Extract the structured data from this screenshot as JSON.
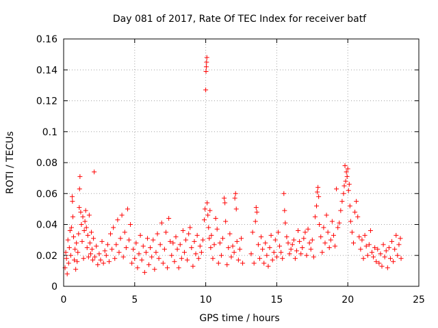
{
  "chart_data": {
    "type": "scatter",
    "title": "Day 081 of 2017, Rate Of TEC Index for receiver batf",
    "xlabel": "GPS time / hours",
    "ylabel": "ROTI / TECUs",
    "xlim": [
      0,
      25
    ],
    "ylim": [
      0,
      0.16
    ],
    "xticks": [
      0,
      5,
      10,
      15,
      20,
      25
    ],
    "xtick_labels": [
      "0",
      "5",
      "10",
      "15",
      "20",
      "25"
    ],
    "yticks": [
      0,
      0.02,
      0.04,
      0.06,
      0.08,
      0.1,
      0.12,
      0.14,
      0.16
    ],
    "ytick_labels": [
      "0",
      "0.02",
      "0.04",
      "0.06",
      "0.08",
      "0.1",
      "0.12",
      "0.14",
      "0.16"
    ],
    "grid": true,
    "marker": "+",
    "color": "#ff0000",
    "series": [
      {
        "name": "ROTI",
        "points": [
          [
            0.1,
            0.012
          ],
          [
            0.15,
            0.022
          ],
          [
            0.2,
            0.018
          ],
          [
            0.25,
            0.008
          ],
          [
            0.3,
            0.03
          ],
          [
            0.35,
            0.015
          ],
          [
            0.4,
            0.025
          ],
          [
            0.45,
            0.036
          ],
          [
            0.5,
            0.02
          ],
          [
            0.55,
            0.038
          ],
          [
            0.6,
            0.058
          ],
          [
            0.62,
            0.055
          ],
          [
            0.65,
            0.045
          ],
          [
            0.7,
            0.032
          ],
          [
            0.75,
            0.017
          ],
          [
            0.8,
            0.024
          ],
          [
            0.85,
            0.011
          ],
          [
            0.9,
            0.028
          ],
          [
            0.95,
            0.016
          ],
          [
            1.0,
            0.022
          ],
          [
            1.05,
            0.034
          ],
          [
            1.1,
            0.051
          ],
          [
            1.12,
            0.063
          ],
          [
            1.15,
            0.071
          ],
          [
            1.2,
            0.048
          ],
          [
            1.25,
            0.04
          ],
          [
            1.3,
            0.029
          ],
          [
            1.35,
            0.045
          ],
          [
            1.4,
            0.018
          ],
          [
            1.45,
            0.036
          ],
          [
            1.5,
            0.042
          ],
          [
            1.55,
            0.049
          ],
          [
            1.6,
            0.038
          ],
          [
            1.65,
            0.025
          ],
          [
            1.7,
            0.033
          ],
          [
            1.75,
            0.019
          ],
          [
            1.8,
            0.046
          ],
          [
            1.85,
            0.028
          ],
          [
            1.9,
            0.021
          ],
          [
            1.95,
            0.035
          ],
          [
            2.0,
            0.024
          ],
          [
            2.05,
            0.017
          ],
          [
            2.1,
            0.031
          ],
          [
            2.15,
            0.074
          ],
          [
            2.2,
            0.019
          ],
          [
            2.3,
            0.026
          ],
          [
            2.4,
            0.014
          ],
          [
            2.5,
            0.021
          ],
          [
            2.6,
            0.017
          ],
          [
            2.7,
            0.029
          ],
          [
            2.8,
            0.015
          ],
          [
            2.9,
            0.023
          ],
          [
            3.0,
            0.02
          ],
          [
            3.1,
            0.027
          ],
          [
            3.2,
            0.016
          ],
          [
            3.3,
            0.034
          ],
          [
            3.4,
            0.024
          ],
          [
            3.5,
            0.038
          ],
          [
            3.6,
            0.018
          ],
          [
            3.7,
            0.027
          ],
          [
            3.8,
            0.043
          ],
          [
            3.9,
            0.022
          ],
          [
            4.0,
            0.031
          ],
          [
            4.1,
            0.046
          ],
          [
            4.2,
            0.019
          ],
          [
            4.3,
            0.035
          ],
          [
            4.4,
            0.025
          ],
          [
            4.5,
            0.05
          ],
          [
            4.6,
            0.03
          ],
          [
            4.7,
            0.04
          ],
          [
            4.8,
            0.015
          ],
          [
            4.9,
            0.024
          ],
          [
            5.0,
            0.018
          ],
          [
            5.1,
            0.028
          ],
          [
            5.2,
            0.012
          ],
          [
            5.3,
            0.021
          ],
          [
            5.4,
            0.033
          ],
          [
            5.5,
            0.017
          ],
          [
            5.6,
            0.026
          ],
          [
            5.7,
            0.009
          ],
          [
            5.8,
            0.022
          ],
          [
            5.9,
            0.031
          ],
          [
            6.0,
            0.014
          ],
          [
            6.1,
            0.025
          ],
          [
            6.2,
            0.019
          ],
          [
            6.3,
            0.03
          ],
          [
            6.4,
            0.011
          ],
          [
            6.5,
            0.022
          ],
          [
            6.6,
            0.034
          ],
          [
            6.7,
            0.018
          ],
          [
            6.8,
            0.027
          ],
          [
            6.9,
            0.041
          ],
          [
            7.0,
            0.015
          ],
          [
            7.1,
            0.024
          ],
          [
            7.2,
            0.035
          ],
          [
            7.3,
            0.012
          ],
          [
            7.4,
            0.044
          ],
          [
            7.5,
            0.029
          ],
          [
            7.6,
            0.02
          ],
          [
            7.7,
            0.028
          ],
          [
            7.8,
            0.016
          ],
          [
            7.9,
            0.032
          ],
          [
            8.0,
            0.024
          ],
          [
            8.1,
            0.012
          ],
          [
            8.2,
            0.027
          ],
          [
            8.3,
            0.018
          ],
          [
            8.4,
            0.036
          ],
          [
            8.5,
            0.022
          ],
          [
            8.6,
            0.03
          ],
          [
            8.7,
            0.017
          ],
          [
            8.8,
            0.034
          ],
          [
            8.9,
            0.038
          ],
          [
            9.0,
            0.025
          ],
          [
            9.1,
            0.013
          ],
          [
            9.2,
            0.029
          ],
          [
            9.3,
            0.021
          ],
          [
            9.4,
            0.033
          ],
          [
            9.5,
            0.018
          ],
          [
            9.6,
            0.026
          ],
          [
            9.7,
            0.022
          ],
          [
            9.8,
            0.03
          ],
          [
            9.9,
            0.043
          ],
          [
            9.95,
            0.05
          ],
          [
            10.0,
            0.127
          ],
          [
            10.02,
            0.139
          ],
          [
            10.04,
            0.142
          ],
          [
            10.06,
            0.145
          ],
          [
            10.08,
            0.148
          ],
          [
            10.1,
            0.054
          ],
          [
            10.15,
            0.046
          ],
          [
            10.2,
            0.038
          ],
          [
            10.25,
            0.031
          ],
          [
            10.3,
            0.049
          ],
          [
            10.35,
            0.025
          ],
          [
            10.4,
            0.033
          ],
          [
            10.5,
            0.018
          ],
          [
            10.6,
            0.027
          ],
          [
            10.7,
            0.044
          ],
          [
            10.8,
            0.037
          ],
          [
            10.9,
            0.015
          ],
          [
            11.0,
            0.028
          ],
          [
            11.1,
            0.02
          ],
          [
            11.2,
            0.031
          ],
          [
            11.3,
            0.057
          ],
          [
            11.35,
            0.054
          ],
          [
            11.4,
            0.042
          ],
          [
            11.5,
            0.014
          ],
          [
            11.6,
            0.025
          ],
          [
            11.7,
            0.034
          ],
          [
            11.8,
            0.019
          ],
          [
            11.9,
            0.026
          ],
          [
            12.0,
            0.022
          ],
          [
            12.05,
            0.057
          ],
          [
            12.1,
            0.06
          ],
          [
            12.15,
            0.05
          ],
          [
            12.2,
            0.029
          ],
          [
            12.3,
            0.017
          ],
          [
            12.4,
            0.024
          ],
          [
            12.5,
            0.031
          ],
          [
            12.6,
            0.015
          ],
          [
            13.2,
            0.021
          ],
          [
            13.3,
            0.035
          ],
          [
            13.4,
            0.015
          ],
          [
            13.5,
            0.042
          ],
          [
            13.55,
            0.051
          ],
          [
            13.6,
            0.048
          ],
          [
            13.7,
            0.027
          ],
          [
            13.8,
            0.018
          ],
          [
            13.9,
            0.032
          ],
          [
            14.0,
            0.024
          ],
          [
            14.1,
            0.015
          ],
          [
            14.2,
            0.028
          ],
          [
            14.3,
            0.02
          ],
          [
            14.4,
            0.013
          ],
          [
            14.5,
            0.025
          ],
          [
            14.6,
            0.033
          ],
          [
            14.7,
            0.017
          ],
          [
            14.8,
            0.022
          ],
          [
            14.9,
            0.03
          ],
          [
            15.0,
            0.019
          ],
          [
            15.1,
            0.035
          ],
          [
            15.2,
            0.026
          ],
          [
            15.3,
            0.022
          ],
          [
            15.4,
            0.018
          ],
          [
            15.5,
            0.06
          ],
          [
            15.55,
            0.049
          ],
          [
            15.6,
            0.041
          ],
          [
            15.7,
            0.032
          ],
          [
            15.8,
            0.028
          ],
          [
            15.9,
            0.021
          ],
          [
            16.0,
            0.024
          ],
          [
            16.1,
            0.027
          ],
          [
            16.2,
            0.03
          ],
          [
            16.3,
            0.018
          ],
          [
            16.4,
            0.023
          ],
          [
            16.5,
            0.036
          ],
          [
            16.6,
            0.029
          ],
          [
            16.7,
            0.021
          ],
          [
            16.8,
            0.025
          ],
          [
            16.9,
            0.031
          ],
          [
            17.0,
            0.035
          ],
          [
            17.1,
            0.02
          ],
          [
            17.2,
            0.037
          ],
          [
            17.3,
            0.028
          ],
          [
            17.4,
            0.024
          ],
          [
            17.5,
            0.03
          ],
          [
            17.6,
            0.019
          ],
          [
            17.7,
            0.045
          ],
          [
            17.8,
            0.052
          ],
          [
            17.85,
            0.061
          ],
          [
            17.9,
            0.064
          ],
          [
            17.95,
            0.058
          ],
          [
            18.0,
            0.04
          ],
          [
            18.1,
            0.032
          ],
          [
            18.2,
            0.022
          ],
          [
            18.3,
            0.038
          ],
          [
            18.4,
            0.028
          ],
          [
            18.5,
            0.046
          ],
          [
            18.6,
            0.035
          ],
          [
            18.7,
            0.025
          ],
          [
            18.8,
            0.03
          ],
          [
            18.9,
            0.042
          ],
          [
            19.0,
            0.033
          ],
          [
            19.1,
            0.026
          ],
          [
            19.2,
            0.063
          ],
          [
            19.3,
            0.038
          ],
          [
            19.4,
            0.041
          ],
          [
            19.5,
            0.049
          ],
          [
            19.6,
            0.055
          ],
          [
            19.7,
            0.06
          ],
          [
            19.75,
            0.065
          ],
          [
            19.8,
            0.078
          ],
          [
            19.85,
            0.068
          ],
          [
            19.9,
            0.074
          ],
          [
            19.95,
            0.071
          ],
          [
            20.0,
            0.076
          ],
          [
            20.05,
            0.062
          ],
          [
            20.1,
            0.066
          ],
          [
            20.15,
            0.052
          ],
          [
            20.2,
            0.042
          ],
          [
            20.3,
            0.035
          ],
          [
            20.4,
            0.028
          ],
          [
            20.5,
            0.048
          ],
          [
            20.6,
            0.055
          ],
          [
            20.7,
            0.045
          ],
          [
            20.8,
            0.032
          ],
          [
            20.9,
            0.024
          ],
          [
            21.0,
            0.03
          ],
          [
            21.1,
            0.018
          ],
          [
            21.2,
            0.033
          ],
          [
            21.3,
            0.026
          ],
          [
            21.4,
            0.02
          ],
          [
            21.5,
            0.027
          ],
          [
            21.6,
            0.036
          ],
          [
            21.7,
            0.022
          ],
          [
            21.8,
            0.019
          ],
          [
            21.9,
            0.025
          ],
          [
            22.0,
            0.016
          ],
          [
            22.1,
            0.024
          ],
          [
            22.2,
            0.015
          ],
          [
            22.3,
            0.021
          ],
          [
            22.4,
            0.013
          ],
          [
            22.5,
            0.027
          ],
          [
            22.6,
            0.019
          ],
          [
            22.7,
            0.023
          ],
          [
            22.8,
            0.012
          ],
          [
            22.9,
            0.025
          ],
          [
            23.0,
            0.018
          ],
          [
            23.1,
            0.029
          ],
          [
            23.2,
            0.016
          ],
          [
            23.3,
            0.024
          ],
          [
            23.4,
            0.033
          ],
          [
            23.5,
            0.02
          ],
          [
            23.6,
            0.027
          ],
          [
            23.7,
            0.031
          ],
          [
            23.75,
            0.018
          ]
        ]
      }
    ]
  }
}
